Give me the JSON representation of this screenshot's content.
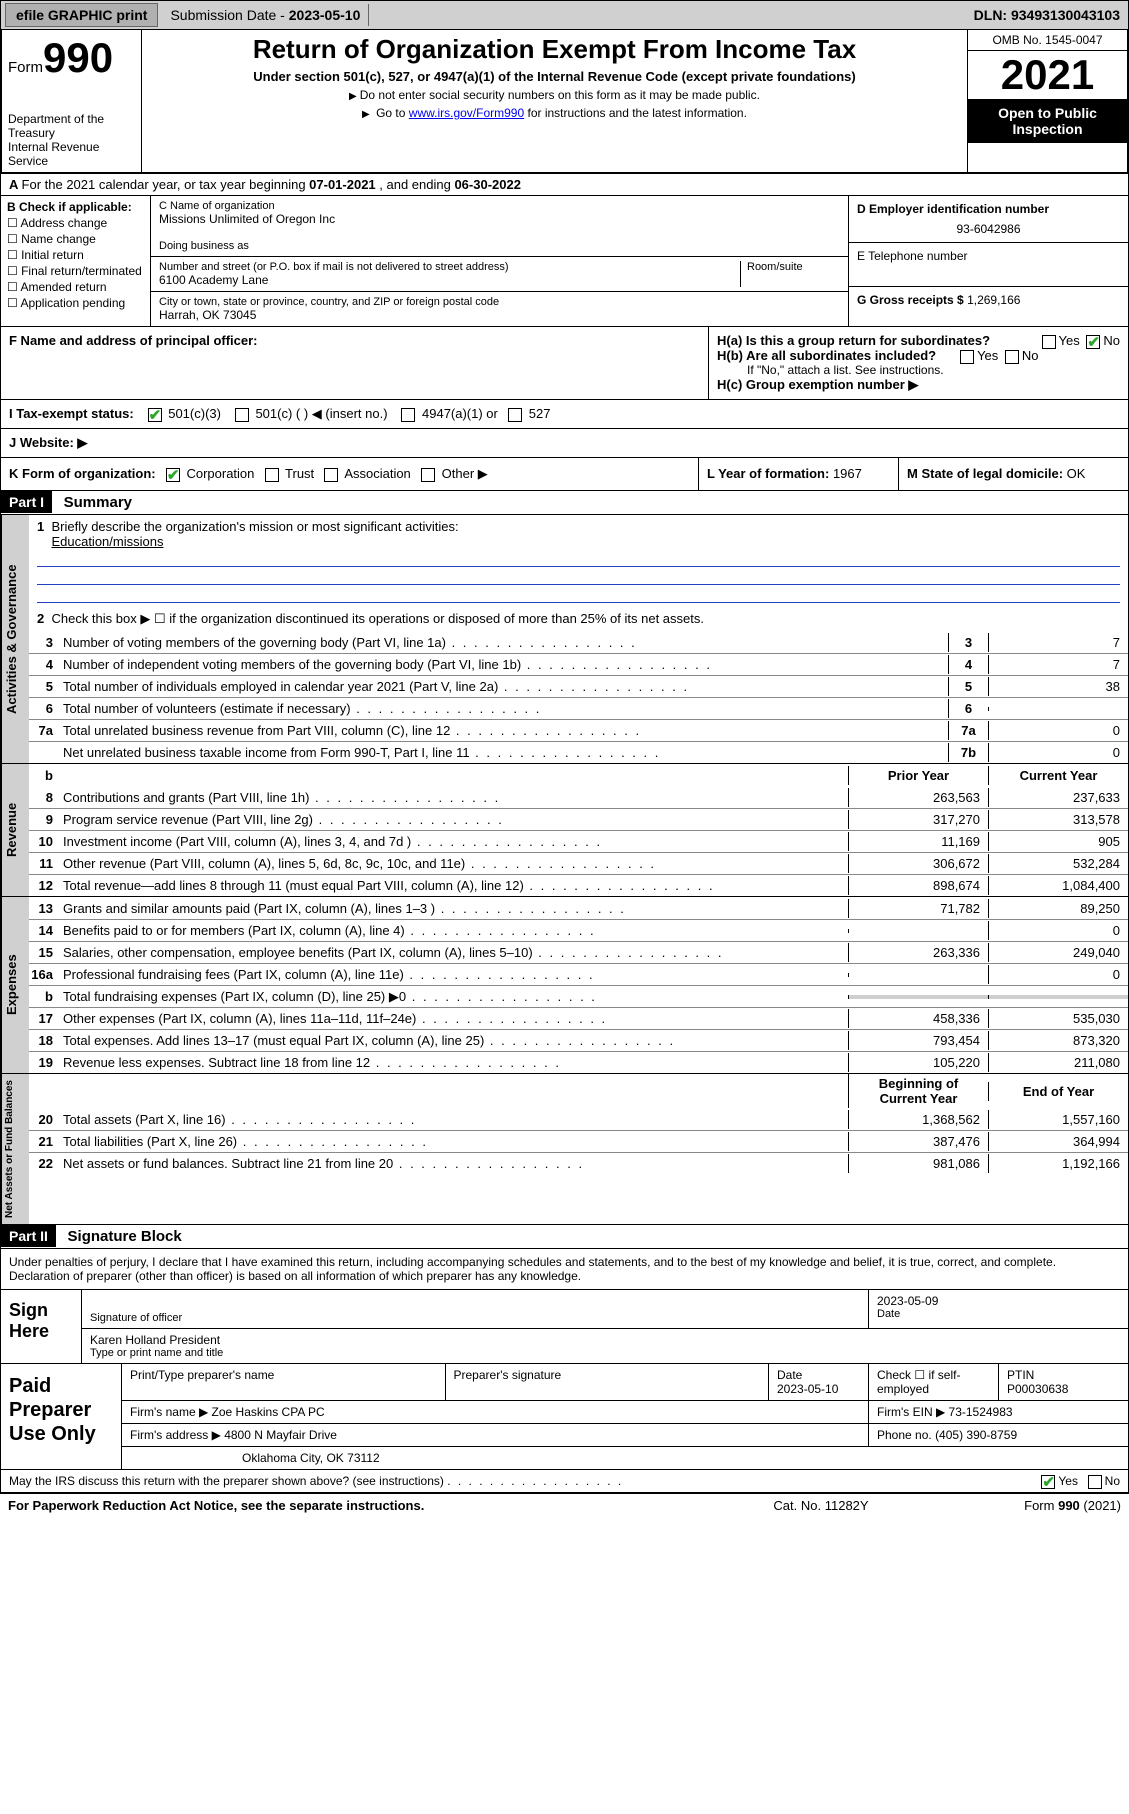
{
  "topbar": {
    "efile": "efile GRAPHIC print",
    "submission_label": "Submission Date - ",
    "submission_date": "2023-05-10",
    "dln_label": "DLN: ",
    "dln": "93493130043103"
  },
  "header": {
    "form_prefix": "Form",
    "form_number": "990",
    "dept": "Department of the Treasury",
    "irs": "Internal Revenue Service",
    "title": "Return of Organization Exempt From Income Tax",
    "subtitle": "Under section 501(c), 527, or 4947(a)(1) of the Internal Revenue Code (except private foundations)",
    "note1": "Do not enter social security numbers on this form as it may be made public.",
    "note2_pre": "Go to ",
    "note2_link": "www.irs.gov/Form990",
    "note2_post": " for instructions and the latest information.",
    "omb": "OMB No. 1545-0047",
    "year": "2021",
    "open": "Open to Public Inspection"
  },
  "rowA": {
    "text_pre": "For the 2021 calendar year, or tax year beginning ",
    "begin": "07-01-2021",
    "mid": " , and ending ",
    "end": "06-30-2022"
  },
  "colB": {
    "label": "B Check if applicable:",
    "opts": [
      "Address change",
      "Name change",
      "Initial return",
      "Final return/terminated",
      "Amended return",
      "Application pending"
    ]
  },
  "colC": {
    "name_label": "C Name of organization",
    "name": "Missions Unlimited of Oregon Inc",
    "dba_label": "Doing business as",
    "dba": "",
    "street_label": "Number and street (or P.O. box if mail is not delivered to street address)",
    "room_label": "Room/suite",
    "street": "6100 Academy Lane",
    "city_label": "City or town, state or province, country, and ZIP or foreign postal code",
    "city": "Harrah, OK  73045"
  },
  "colDE": {
    "d_label": "D Employer identification number",
    "d_val": "93-6042986",
    "e_label": "E Telephone number",
    "e_val": "",
    "g_label": "G Gross receipts $ ",
    "g_val": "1,269,166"
  },
  "rowF": {
    "label": "F  Name and address of principal officer:",
    "val": ""
  },
  "rowH": {
    "ha": "H(a)  Is this a group return for subordinates?",
    "hb": "H(b)  Are all subordinates included?",
    "hb_note": "If \"No,\" attach a list. See instructions.",
    "hc": "H(c)  Group exemption number ▶",
    "yes": "Yes",
    "no": "No"
  },
  "rowI": {
    "label": "I    Tax-exempt status:",
    "opt1": "501(c)(3)",
    "opt2": "501(c) (  ) ◀ (insert no.)",
    "opt3": "4947(a)(1) or",
    "opt4": "527"
  },
  "rowJ": {
    "label": "J   Website: ▶",
    "val": ""
  },
  "rowK": {
    "k_label": "K Form of organization:",
    "k_opts": [
      "Corporation",
      "Trust",
      "Association",
      "Other ▶"
    ],
    "l_label": "L Year of formation: ",
    "l_val": "1967",
    "m_label": "M State of legal domicile: ",
    "m_val": "OK"
  },
  "part1": {
    "hdr": "Part I",
    "title": "Summary",
    "vtabs": [
      "Activities & Governance",
      "Revenue",
      "Expenses",
      "Net Assets or Fund Balances"
    ],
    "q1_label": "Briefly describe the organization's mission or most significant activities:",
    "q1_val": "Education/missions",
    "q2": "Check this box ▶ ☐  if the organization discontinued its operations or disposed of more than 25% of its net assets.",
    "lines_gov": [
      {
        "n": "3",
        "d": "Number of voting members of the governing body (Part VI, line 1a)",
        "box": "3",
        "v": "7"
      },
      {
        "n": "4",
        "d": "Number of independent voting members of the governing body (Part VI, line 1b)",
        "box": "4",
        "v": "7"
      },
      {
        "n": "5",
        "d": "Total number of individuals employed in calendar year 2021 (Part V, line 2a)",
        "box": "5",
        "v": "38"
      },
      {
        "n": "6",
        "d": "Total number of volunteers (estimate if necessary)",
        "box": "6",
        "v": ""
      },
      {
        "n": "7a",
        "d": "Total unrelated business revenue from Part VIII, column (C), line 12",
        "box": "7a",
        "v": "0"
      },
      {
        "n": "",
        "d": "Net unrelated business taxable income from Form 990-T, Part I, line 11",
        "box": "7b",
        "v": "0"
      }
    ],
    "col_prior": "Prior Year",
    "col_current": "Current Year",
    "lines_rev": [
      {
        "n": "8",
        "d": "Contributions and grants (Part VIII, line 1h)",
        "p": "263,563",
        "c": "237,633"
      },
      {
        "n": "9",
        "d": "Program service revenue (Part VIII, line 2g)",
        "p": "317,270",
        "c": "313,578"
      },
      {
        "n": "10",
        "d": "Investment income (Part VIII, column (A), lines 3, 4, and 7d )",
        "p": "11,169",
        "c": "905"
      },
      {
        "n": "11",
        "d": "Other revenue (Part VIII, column (A), lines 5, 6d, 8c, 9c, 10c, and 11e)",
        "p": "306,672",
        "c": "532,284"
      },
      {
        "n": "12",
        "d": "Total revenue—add lines 8 through 11 (must equal Part VIII, column (A), line 12)",
        "p": "898,674",
        "c": "1,084,400"
      }
    ],
    "lines_exp": [
      {
        "n": "13",
        "d": "Grants and similar amounts paid (Part IX, column (A), lines 1–3 )",
        "p": "71,782",
        "c": "89,250"
      },
      {
        "n": "14",
        "d": "Benefits paid to or for members (Part IX, column (A), line 4)",
        "p": "",
        "c": "0"
      },
      {
        "n": "15",
        "d": "Salaries, other compensation, employee benefits (Part IX, column (A), lines 5–10)",
        "p": "263,336",
        "c": "249,040"
      },
      {
        "n": "16a",
        "d": "Professional fundraising fees (Part IX, column (A), line 11e)",
        "p": "",
        "c": "0"
      },
      {
        "n": "b",
        "d": "Total fundraising expenses (Part IX, column (D), line 25) ▶0",
        "p": "__grey__",
        "c": "__grey__"
      },
      {
        "n": "17",
        "d": "Other expenses (Part IX, column (A), lines 11a–11d, 11f–24e)",
        "p": "458,336",
        "c": "535,030"
      },
      {
        "n": "18",
        "d": "Total expenses. Add lines 13–17 (must equal Part IX, column (A), line 25)",
        "p": "793,454",
        "c": "873,320"
      },
      {
        "n": "19",
        "d": "Revenue less expenses. Subtract line 18 from line 12",
        "p": "105,220",
        "c": "211,080"
      }
    ],
    "col_begin": "Beginning of Current Year",
    "col_end": "End of Year",
    "lines_net": [
      {
        "n": "20",
        "d": "Total assets (Part X, line 16)",
        "p": "1,368,562",
        "c": "1,557,160"
      },
      {
        "n": "21",
        "d": "Total liabilities (Part X, line 26)",
        "p": "387,476",
        "c": "364,994"
      },
      {
        "n": "22",
        "d": "Net assets or fund balances. Subtract line 21 from line 20",
        "p": "981,086",
        "c": "1,192,166"
      }
    ]
  },
  "part2": {
    "hdr": "Part II",
    "title": "Signature Block",
    "decl": "Under penalties of perjury, I declare that I have examined this return, including accompanying schedules and statements, and to the best of my knowledge and belief, it is true, correct, and complete. Declaration of preparer (other than officer) is based on all information of which preparer has any knowledge.",
    "sign_here": "Sign Here",
    "sig_officer": "Signature of officer",
    "sig_date_label": "Date",
    "sig_date": "2023-05-09",
    "officer_name": "Karen Holland  President",
    "officer_label": "Type or print name and title",
    "paid": "Paid Preparer Use Only",
    "prep_name_label": "Print/Type preparer's name",
    "prep_name": "",
    "prep_sig_label": "Preparer's signature",
    "prep_date_label": "Date",
    "prep_date": "2023-05-10",
    "prep_check": "Check ☐ if self-employed",
    "ptin_label": "PTIN",
    "ptin": "P00030638",
    "firm_name_label": "Firm's name    ▶ ",
    "firm_name": "Zoe Haskins CPA PC",
    "firm_ein_label": "Firm's EIN ▶ ",
    "firm_ein": "73-1524983",
    "firm_addr_label": "Firm's address ▶ ",
    "firm_addr1": "4800 N Mayfair Drive",
    "firm_addr2": "Oklahoma City, OK  73112",
    "phone_label": "Phone no. ",
    "phone": "(405) 390-8759",
    "discuss": "May the IRS discuss this return with the preparer shown above? (see instructions)",
    "yes": "Yes",
    "no": "No"
  },
  "footer": {
    "left": "For Paperwork Reduction Act Notice, see the separate instructions.",
    "mid": "Cat. No. 11282Y",
    "right": "Form 990 (2021)"
  }
}
